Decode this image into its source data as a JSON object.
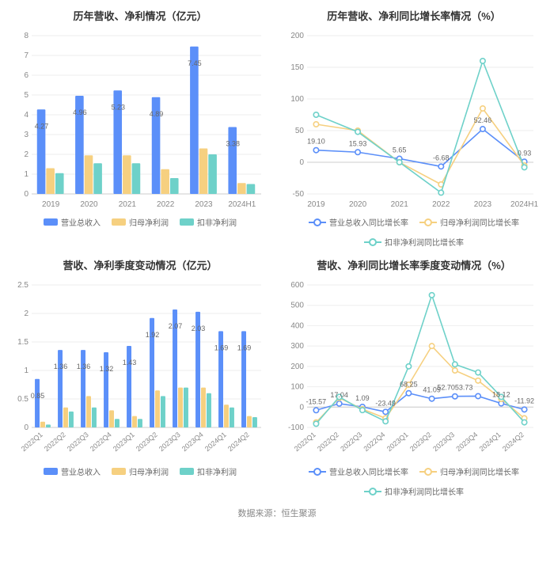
{
  "colors": {
    "series1": "#5b8ff9",
    "series2": "#f6d080",
    "series3": "#6ed1c9",
    "grid": "#eeeeee",
    "axis": "#cccccc",
    "text": "#888888",
    "title": "#333333"
  },
  "footer": "数据来源：恒生聚源",
  "panel1": {
    "title": "历年营收、净利情况（亿元）",
    "type": "bar",
    "categories": [
      "2019",
      "2020",
      "2021",
      "2022",
      "2023",
      "2024H1"
    ],
    "ylim": [
      0,
      8
    ],
    "ytick_step": 1,
    "series": [
      {
        "name": "营业总收入",
        "data": [
          4.27,
          4.96,
          5.23,
          4.89,
          7.45,
          3.38
        ]
      },
      {
        "name": "归母净利润",
        "data": [
          1.3,
          1.95,
          1.95,
          1.25,
          2.3,
          0.55
        ]
      },
      {
        "name": "扣非净利润",
        "data": [
          1.05,
          1.55,
          1.55,
          0.8,
          2.0,
          0.5
        ]
      }
    ],
    "labels": [
      "4.27",
      "4.96",
      "5.23",
      "4.89",
      "7.45",
      "3.38"
    ],
    "legend": [
      "营业总收入",
      "归母净利润",
      "扣非净利润"
    ]
  },
  "panel2": {
    "title": "历年营收、净利同比增长率情况（%）",
    "type": "line",
    "categories": [
      "2019",
      "2020",
      "2021",
      "2022",
      "2023",
      "2024H1"
    ],
    "ylim": [
      -50,
      200
    ],
    "ytick_step": 50,
    "series": [
      {
        "name": "营业总收入同比增长率",
        "data": [
          19.1,
          15.93,
          5.65,
          -6.68,
          52.46,
          0.93
        ]
      },
      {
        "name": "归母净利润同比增长率",
        "data": [
          60,
          50,
          0,
          -35,
          85,
          -5
        ]
      },
      {
        "name": "扣非净利润同比增长率",
        "data": [
          75,
          48,
          0,
          -48,
          160,
          -8
        ]
      }
    ],
    "labels": [
      "19.10",
      "15.93",
      "5.65",
      "-6.68",
      "52.46",
      "0.93"
    ],
    "legend": [
      "营业总收入同比增长率",
      "归母净利润同比增长率",
      "扣非净利润同比增长率"
    ]
  },
  "panel3": {
    "title": "营收、净利季度变动情况（亿元）",
    "type": "bar",
    "categories": [
      "2022Q1",
      "2022Q2",
      "2022Q3",
      "2022Q4",
      "2023Q1",
      "2023Q2",
      "2023Q3",
      "2023Q4",
      "2024Q1",
      "2024Q2"
    ],
    "ylim": [
      0,
      2.5
    ],
    "ytick_step": 0.5,
    "series": [
      {
        "name": "营业总收入",
        "data": [
          0.85,
          1.36,
          1.36,
          1.32,
          1.43,
          1.92,
          2.07,
          2.03,
          1.69,
          1.69
        ]
      },
      {
        "name": "归母净利润",
        "data": [
          0.1,
          0.35,
          0.55,
          0.3,
          0.2,
          0.65,
          0.7,
          0.7,
          0.4,
          0.2
        ]
      },
      {
        "name": "扣非净利润",
        "data": [
          0.05,
          0.28,
          0.35,
          0.15,
          0.15,
          0.55,
          0.7,
          0.6,
          0.35,
          0.18
        ]
      }
    ],
    "labels": [
      "0.85",
      "1.36",
      "1.36",
      "1.32",
      "1.43",
      "1.92",
      "2.07",
      "2.03",
      "1.69",
      "1.69"
    ],
    "legend": [
      "营业总收入",
      "归母净利润",
      "扣非净利润"
    ],
    "rotate_x": true
  },
  "panel4": {
    "title": "营收、净利同比增长率季度变动情况（%）",
    "type": "line",
    "categories": [
      "2022Q1",
      "2022Q2",
      "2022Q3",
      "2022Q4",
      "2023Q1",
      "2023Q2",
      "2023Q3",
      "2023Q4",
      "2024Q1",
      "2024Q2"
    ],
    "ylim": [
      -100,
      600
    ],
    "ytick_step": 100,
    "series": [
      {
        "name": "营业总收入同比增长率",
        "data": [
          -15.57,
          17.04,
          1.09,
          -23.49,
          68.25,
          41.09,
          52.7,
          53.73,
          18.12,
          -11.92
        ]
      },
      {
        "name": "归母净利润同比增长率",
        "data": [
          -75,
          45,
          -10,
          -55,
          110,
          300,
          180,
          130,
          40,
          -55
        ]
      },
      {
        "name": "扣非净利润同比增长率",
        "data": [
          -82,
          50,
          -15,
          -70,
          200,
          550,
          210,
          170,
          50,
          -75
        ]
      }
    ],
    "labels": [
      "-15.57",
      "17.04",
      "1.09",
      "-23.49",
      "68.25",
      "41.09",
      "52.7053.73",
      "",
      "18.12",
      "-11.92"
    ],
    "legend": [
      "营业总收入同比增长率",
      "归母净利润同比增长率",
      "扣非净利润同比增长率"
    ],
    "rotate_x": true
  }
}
